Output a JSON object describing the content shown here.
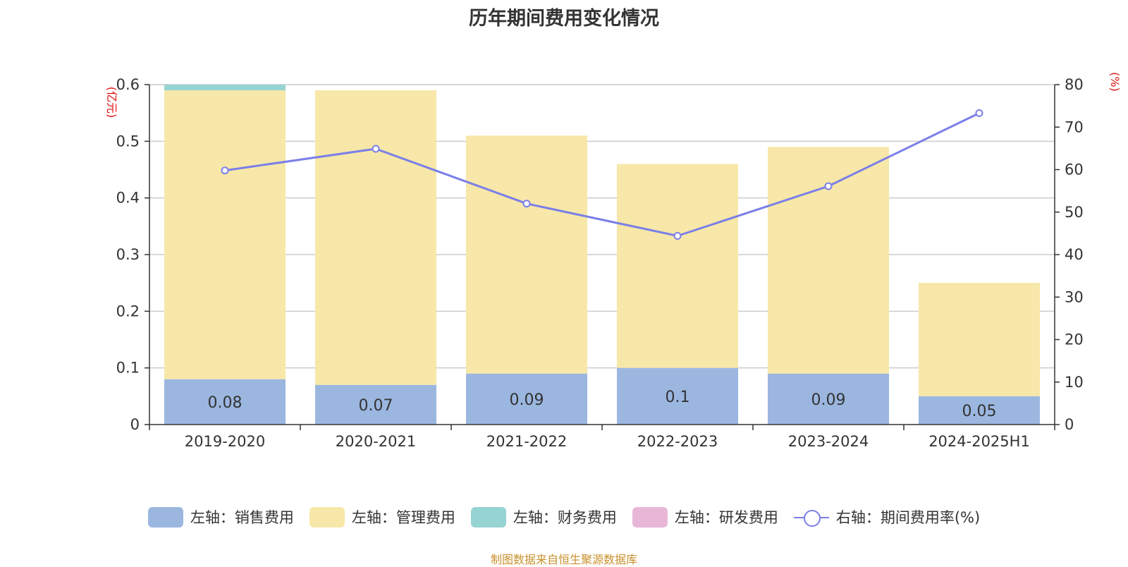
{
  "chart_data": {
    "type": "bar",
    "title": "历年期间费用变化情况",
    "categories": [
      "2019-2020",
      "2020-2021",
      "2021-2022",
      "2022-2023",
      "2023-2024",
      "2024-2025H1"
    ],
    "left_axis": {
      "unit": "(亿元)",
      "ylim": [
        0,
        0.6
      ],
      "ticks": [
        "0",
        "0.1",
        "0.2",
        "0.3",
        "0.4",
        "0.5",
        "0.6"
      ]
    },
    "right_axis": {
      "unit": "(%)",
      "ylim": [
        0,
        80
      ],
      "ticks": [
        "0",
        "10",
        "20",
        "30",
        "40",
        "50",
        "60",
        "70",
        "80"
      ]
    },
    "stacked": true,
    "grid": true,
    "series": [
      {
        "name": "左轴：销售费用",
        "axis": "left",
        "type": "bar",
        "color": "#9bb7e0",
        "values": [
          0.08,
          0.07,
          0.09,
          0.1,
          0.09,
          0.05
        ],
        "labels": [
          "0.08",
          "0.07",
          "0.09",
          "0.1",
          "0.09",
          "0.05"
        ]
      },
      {
        "name": "左轴：管理费用",
        "axis": "left",
        "type": "bar",
        "color": "#f7e7a8",
        "values": [
          0.51,
          0.52,
          0.42,
          0.36,
          0.4,
          0.2
        ]
      },
      {
        "name": "左轴：财务费用",
        "axis": "left",
        "type": "bar",
        "color": "#96d3d3",
        "values": [
          0.01,
          0,
          0,
          0,
          0,
          0
        ]
      },
      {
        "name": "左轴：研发费用",
        "axis": "left",
        "type": "bar",
        "color": "#e8b7d8",
        "values": [
          0,
          0,
          0,
          0,
          0,
          0
        ]
      },
      {
        "name": "右轴：期间费用率(%)",
        "axis": "right",
        "type": "line",
        "color": "#7b7fe8",
        "values": [
          59.8,
          64.9,
          52.0,
          44.4,
          56.1,
          73.3
        ]
      }
    ],
    "legend_position": "bottom"
  },
  "source_note": "制图数据来自恒生聚源数据库"
}
